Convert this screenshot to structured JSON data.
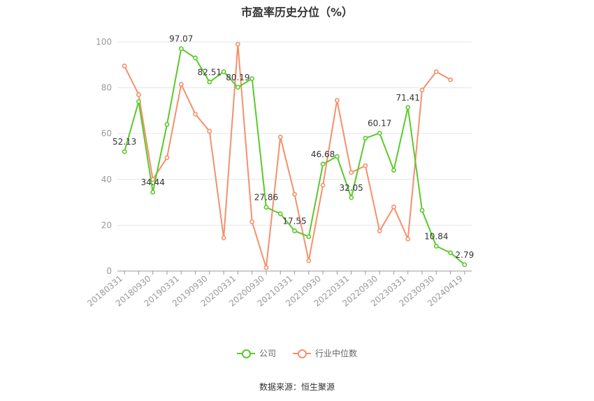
{
  "chart_data": {
    "type": "line",
    "title": "市盈率历史分位（%）",
    "ylim": [
      0,
      100
    ],
    "yticks": [
      0,
      20,
      40,
      60,
      80,
      100
    ],
    "grid": true,
    "legend_position": "bottom",
    "x": [
      "20180331",
      "20180630",
      "20180930",
      "20181231",
      "20190331",
      "20190630",
      "20190930",
      "20191231",
      "20200331",
      "20200630",
      "20200930",
      "20201231",
      "20210331",
      "20210630",
      "20210930",
      "20211231",
      "20220331",
      "20220630",
      "20220930",
      "20221231",
      "20230331",
      "20230630",
      "20230930",
      "20231231",
      "20240419"
    ],
    "xtick_labels": [
      "20180331",
      "20180930",
      "20190331",
      "20190930",
      "20200331",
      "20200930",
      "20210331",
      "20210930",
      "20220331",
      "20220930",
      "20230331",
      "20230930",
      "20240419"
    ],
    "series": [
      {
        "name": "公司",
        "color": "#5ac92b",
        "values": [
          52.13,
          74,
          34.44,
          64,
          97.07,
          93,
          82.51,
          87,
          80.19,
          84,
          27.86,
          25,
          17.55,
          15,
          46.68,
          50,
          32.05,
          58,
          60.17,
          44,
          71.41,
          26.5,
          10.84,
          8,
          2.79
        ],
        "data_labels": [
          {
            "index": 0,
            "text": "52.13"
          },
          {
            "index": 2,
            "text": "34.44"
          },
          {
            "index": 4,
            "text": "97.07"
          },
          {
            "index": 6,
            "text": "82.51"
          },
          {
            "index": 8,
            "text": "80.19"
          },
          {
            "index": 10,
            "text": "27.86"
          },
          {
            "index": 12,
            "text": "17.55"
          },
          {
            "index": 14,
            "text": "46.68"
          },
          {
            "index": 16,
            "text": "32.05"
          },
          {
            "index": 18,
            "text": "60.17"
          },
          {
            "index": 20,
            "text": "71.41"
          },
          {
            "index": 22,
            "text": "10.84"
          },
          {
            "index": 24,
            "text": "2.79"
          }
        ]
      },
      {
        "name": "行业中位数",
        "color": "#f5906a",
        "values": [
          89.5,
          77,
          40,
          49.5,
          81.5,
          68.5,
          61,
          14.5,
          99,
          21.5,
          1.5,
          58.5,
          33.5,
          4.5,
          37.5,
          74.5,
          43,
          46,
          17.5,
          28,
          14,
          79,
          87,
          83.5,
          null
        ]
      }
    ]
  },
  "source": "数据来源：恒生聚源"
}
